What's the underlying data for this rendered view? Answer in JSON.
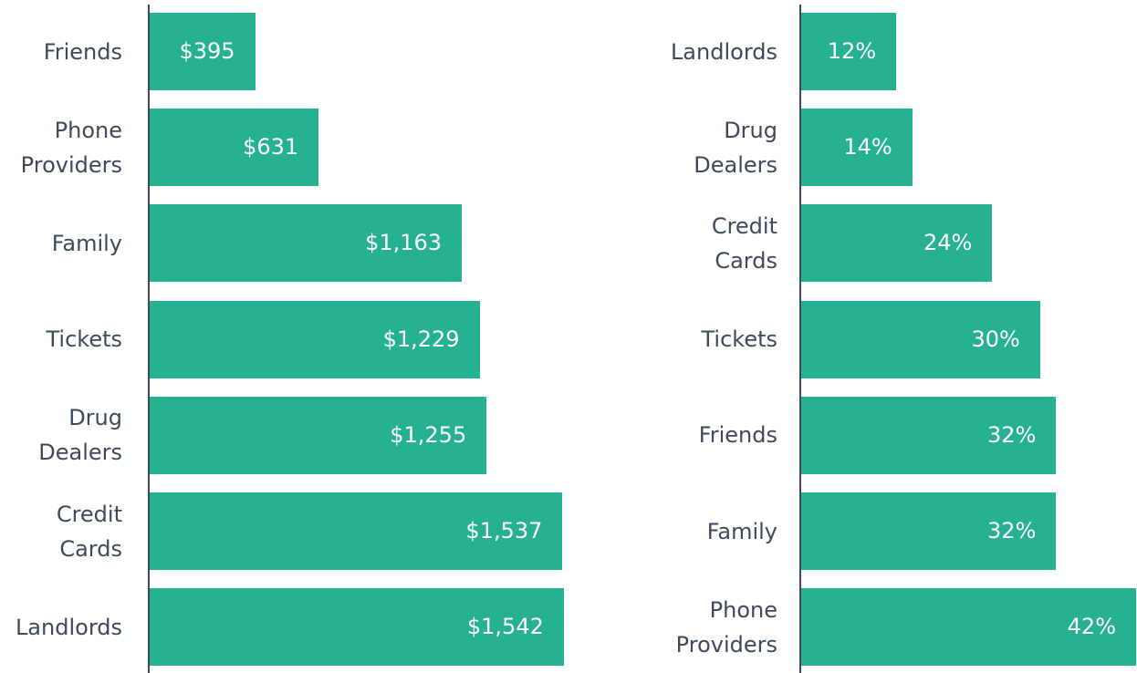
{
  "chart_data": [
    {
      "type": "bar",
      "orientation": "horizontal",
      "color": "#27b193",
      "categories": [
        "Friends",
        "Phone Providers",
        "Family",
        "Tickets",
        "Drug Dealers",
        "Credit Cards",
        "Landlords"
      ],
      "values": [
        395,
        631,
        1163,
        1229,
        1255,
        1537,
        1542
      ],
      "value_labels": [
        "$395",
        "$631",
        "$1,163",
        "$1,229",
        "$1,255",
        "$1,537",
        "$1,542"
      ],
      "xlim": [
        0,
        1600
      ]
    },
    {
      "type": "bar",
      "orientation": "horizontal",
      "color": "#27b193",
      "categories": [
        "Landlords",
        "Drug Dealers",
        "Credit Cards",
        "Tickets",
        "Friends",
        "Family",
        "Phone Providers"
      ],
      "values": [
        12,
        14,
        24,
        30,
        32,
        32,
        42
      ],
      "value_labels": [
        "12%",
        "14%",
        "24%",
        "30%",
        "32%",
        "32%",
        "42%"
      ],
      "xlim": [
        0,
        42
      ]
    }
  ]
}
